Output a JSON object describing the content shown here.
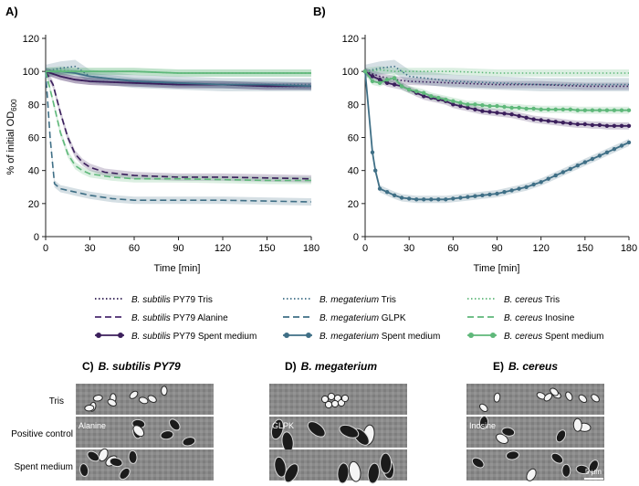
{
  "panels": {
    "a_label": "A)",
    "b_label": "B)",
    "c_label": "C)",
    "c_species": "B. subtilis PY79",
    "d_label": "D)",
    "d_species": "B. megaterium",
    "e_label": "E)",
    "e_species": "B. cereus"
  },
  "axes": {
    "ylabel_main": "% of initial OD",
    "ylabel_sub": "600",
    "xlabel": "Time [min]",
    "xticks": [
      "0",
      "30",
      "60",
      "90",
      "120",
      "150",
      "180"
    ],
    "yticks": [
      "0",
      "20",
      "40",
      "60",
      "80",
      "100",
      "120"
    ]
  },
  "legend": [
    {
      "species": "B. subtilis",
      "rest": " PY79 Tris",
      "color": "#2d1a4e",
      "style": "dot"
    },
    {
      "species": "B. megaterium",
      "rest": " Tris",
      "color": "#3f6f86",
      "style": "dot"
    },
    {
      "species": "B. cereus",
      "rest": " Tris",
      "color": "#5fb87a",
      "style": "dot"
    },
    {
      "species": "B. subtilis",
      "rest": " PY79 Alanine",
      "color": "#4a2a6e",
      "style": "dash"
    },
    {
      "species": "B. megaterium",
      "rest": " GLPK",
      "color": "#3f6f86",
      "style": "dash"
    },
    {
      "species": "B. cereus",
      "rest": " Inosine",
      "color": "#5fb87a",
      "style": "dash"
    },
    {
      "species": "B. subtilis",
      "rest": " PY79 Spent medium",
      "color": "#3b1f5c",
      "style": "solid"
    },
    {
      "species": "B. megaterium",
      "rest": " Spent medium",
      "color": "#3f6f86",
      "style": "solid"
    },
    {
      "species": "B. cereus",
      "rest": " Spent medium",
      "color": "#5fb87a",
      "style": "solid"
    }
  ],
  "micro": {
    "row_labels": [
      "Tris",
      "Positive control",
      "Spent medium"
    ],
    "overlay_alanine": "Alanine",
    "overlay_glpk": "GLPK",
    "overlay_inosine": "Inosine",
    "scale_bar": "5 μm"
  },
  "colors": {
    "subtilis": "#3b1f5c",
    "megaterium": "#3f6f86",
    "cereus": "#5fb87a"
  },
  "chart_data": [
    {
      "type": "line",
      "title": "A)",
      "xlabel": "Time [min]",
      "ylabel": "% of initial OD600",
      "xlim": [
        0,
        180
      ],
      "ylim": [
        0,
        120
      ],
      "series": [
        {
          "name": "B. subtilis PY79 Tris",
          "x": [
            0,
            10,
            20,
            30,
            60,
            90,
            120,
            150,
            180
          ],
          "values": [
            100,
            97,
            95,
            94,
            93,
            92,
            92,
            91,
            91
          ]
        },
        {
          "name": "B. megaterium Tris",
          "x": [
            0,
            10,
            20,
            30,
            60,
            90,
            120,
            150,
            180
          ],
          "values": [
            100,
            102,
            103,
            97,
            94,
            93,
            92,
            92,
            92
          ]
        },
        {
          "name": "B. cereus Tris",
          "x": [
            0,
            10,
            20,
            30,
            60,
            90,
            120,
            150,
            180
          ],
          "values": [
            100,
            101,
            100,
            100,
            100,
            99,
            99,
            99,
            99
          ]
        },
        {
          "name": "B. subtilis PY79 Alanine",
          "x": [
            0,
            5,
            10,
            15,
            20,
            25,
            30,
            40,
            60,
            90,
            120,
            150,
            180
          ],
          "values": [
            100,
            92,
            75,
            60,
            50,
            45,
            42,
            39,
            37,
            36,
            36,
            35.5,
            35
          ]
        },
        {
          "name": "B. megaterium GLPK",
          "x": [
            0,
            3,
            6,
            10,
            15,
            20,
            30,
            45,
            60,
            90,
            120,
            150,
            180
          ],
          "values": [
            100,
            60,
            32,
            29,
            28,
            27,
            25,
            23,
            22,
            22,
            22,
            21.5,
            21
          ]
        },
        {
          "name": "B. cereus Inosine",
          "x": [
            0,
            5,
            10,
            15,
            20,
            25,
            30,
            45,
            60,
            90,
            120,
            150,
            180
          ],
          "values": [
            100,
            82,
            63,
            50,
            43,
            40,
            38,
            36,
            35,
            35,
            34.5,
            34,
            34
          ]
        },
        {
          "name": "B. subtilis PY79 Spent medium",
          "x": [
            0,
            10,
            20,
            30,
            60,
            90,
            120,
            150,
            180
          ],
          "values": [
            100,
            97,
            95,
            94,
            93,
            92,
            92,
            91,
            91
          ]
        },
        {
          "name": "B. megaterium Spent medium",
          "x": [
            0,
            10,
            20,
            30,
            60,
            90,
            120,
            150,
            180
          ],
          "values": [
            100,
            100,
            99,
            97,
            94,
            93,
            92,
            92,
            91
          ]
        },
        {
          "name": "B. cereus Spent medium",
          "x": [
            0,
            10,
            20,
            30,
            60,
            90,
            120,
            150,
            180
          ],
          "values": [
            100,
            100,
            100,
            100,
            100,
            99,
            99,
            99,
            99
          ]
        }
      ]
    },
    {
      "type": "line",
      "title": "B)",
      "xlabel": "Time [min]",
      "ylabel": "% of initial OD600",
      "xlim": [
        0,
        180
      ],
      "ylim": [
        0,
        120
      ],
      "series": [
        {
          "name": "B. subtilis PY79 Tris",
          "x": [
            0,
            10,
            20,
            30,
            60,
            90,
            120,
            150,
            180
          ],
          "values": [
            100,
            97,
            95,
            94,
            93,
            92,
            92,
            91,
            91
          ]
        },
        {
          "name": "B. megaterium Tris",
          "x": [
            0,
            10,
            20,
            30,
            60,
            90,
            120,
            150,
            180
          ],
          "values": [
            100,
            102,
            103,
            97,
            94,
            93,
            92,
            92,
            92
          ]
        },
        {
          "name": "B. cereus Tris",
          "x": [
            0,
            10,
            20,
            30,
            60,
            90,
            120,
            150,
            180
          ],
          "values": [
            100,
            101,
            100,
            100,
            100,
            99,
            99,
            99,
            99
          ]
        },
        {
          "name": "B. subtilis PY79 Spent medium",
          "x": [
            0,
            5,
            10,
            15,
            20,
            25,
            30,
            35,
            40,
            45,
            50,
            55,
            60,
            65,
            70,
            75,
            80,
            85,
            90,
            95,
            100,
            105,
            110,
            115,
            120,
            125,
            130,
            135,
            140,
            145,
            150,
            155,
            160,
            165,
            170,
            175,
            180
          ],
          "values": [
            100,
            97,
            95,
            93,
            92,
            91,
            89,
            87,
            85,
            84,
            83,
            82,
            80,
            79,
            78,
            77,
            76,
            75.5,
            75,
            74.5,
            74,
            73,
            72,
            71,
            70.5,
            70,
            69.5,
            69,
            68.5,
            68,
            68,
            67.5,
            67.5,
            67,
            67,
            67,
            67
          ]
        },
        {
          "name": "B. megaterium Spent medium",
          "x": [
            0,
            5,
            7,
            10,
            15,
            20,
            25,
            30,
            35,
            40,
            45,
            50,
            55,
            60,
            65,
            70,
            75,
            80,
            85,
            90,
            95,
            100,
            105,
            110,
            115,
            120,
            125,
            130,
            135,
            140,
            145,
            150,
            155,
            160,
            165,
            170,
            175,
            180
          ],
          "values": [
            100,
            51,
            40,
            29,
            27,
            25,
            23.5,
            23,
            22.5,
            22.5,
            22.5,
            22.5,
            22.5,
            23,
            23.5,
            24,
            24.5,
            25,
            25.5,
            26,
            27,
            28,
            29,
            30,
            31.5,
            33,
            35,
            37,
            39,
            41,
            43,
            45,
            47,
            49,
            51,
            53,
            55,
            57
          ]
        },
        {
          "name": "B. cereus Spent medium",
          "x": [
            0,
            5,
            10,
            15,
            20,
            25,
            30,
            35,
            40,
            45,
            50,
            55,
            60,
            65,
            70,
            75,
            80,
            85,
            90,
            95,
            100,
            105,
            110,
            115,
            120,
            125,
            130,
            135,
            140,
            145,
            150,
            155,
            160,
            165,
            170,
            175,
            180
          ],
          "values": [
            100,
            94,
            93,
            95,
            96,
            91,
            89,
            88,
            87,
            85,
            84,
            83,
            82,
            81,
            80,
            80,
            79.5,
            79,
            79,
            78.5,
            78,
            78,
            77.5,
            77.5,
            77,
            77,
            77,
            77,
            77,
            76.5,
            76.5,
            76.5,
            76.5,
            76.5,
            76.5,
            76.5,
            76.5
          ]
        }
      ]
    }
  ]
}
